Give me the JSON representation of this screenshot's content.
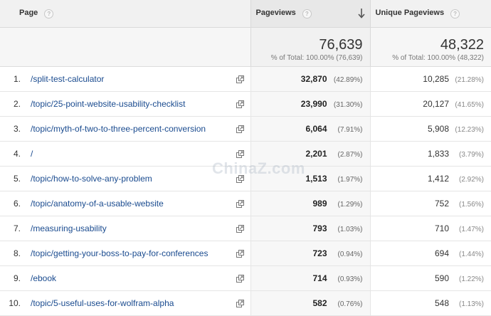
{
  "header": {
    "page_label": "Page",
    "pageviews_label": "Pageviews",
    "unique_pageviews_label": "Unique Pageviews",
    "help_glyph": "?"
  },
  "totals": {
    "pageviews": "76,639",
    "pageviews_sub": "% of Total: 100.00% (76,639)",
    "unique_pageviews": "48,322",
    "unique_pageviews_sub": "% of Total: 100.00% (48,322)"
  },
  "rows": [
    {
      "index": "1.",
      "page": "/split-test-calculator",
      "pv": "32,870",
      "pv_pct": "(42.89%)",
      "upv": "10,285",
      "upv_pct": "(21.28%)"
    },
    {
      "index": "2.",
      "page": "/topic/25-point-website-usability-checklist",
      "pv": "23,990",
      "pv_pct": "(31.30%)",
      "upv": "20,127",
      "upv_pct": "(41.65%)"
    },
    {
      "index": "3.",
      "page": "/topic/myth-of-two-to-three-percent-conversion",
      "pv": "6,064",
      "pv_pct": "(7.91%)",
      "upv": "5,908",
      "upv_pct": "(12.23%)"
    },
    {
      "index": "4.",
      "page": "/",
      "pv": "2,201",
      "pv_pct": "(2.87%)",
      "upv": "1,833",
      "upv_pct": "(3.79%)"
    },
    {
      "index": "5.",
      "page": "/topic/how-to-solve-any-problem",
      "pv": "1,513",
      "pv_pct": "(1.97%)",
      "upv": "1,412",
      "upv_pct": "(2.92%)"
    },
    {
      "index": "6.",
      "page": "/topic/anatomy-of-a-usable-website",
      "pv": "989",
      "pv_pct": "(1.29%)",
      "upv": "752",
      "upv_pct": "(1.56%)"
    },
    {
      "index": "7.",
      "page": "/measuring-usability",
      "pv": "793",
      "pv_pct": "(1.03%)",
      "upv": "710",
      "upv_pct": "(1.47%)"
    },
    {
      "index": "8.",
      "page": "/topic/getting-your-boss-to-pay-for-conferences",
      "pv": "723",
      "pv_pct": "(0.94%)",
      "upv": "694",
      "upv_pct": "(1.44%)"
    },
    {
      "index": "9.",
      "page": "/ebook",
      "pv": "714",
      "pv_pct": "(0.93%)",
      "upv": "590",
      "upv_pct": "(1.22%)"
    },
    {
      "index": "10.",
      "page": "/topic/5-useful-uses-for-wolfram-alpha",
      "pv": "582",
      "pv_pct": "(0.76%)",
      "upv": "548",
      "upv_pct": "(1.13%)"
    }
  ],
  "watermark": "ChinaZ.com",
  "colors": {
    "link": "#1a4b8f",
    "header_bg": "#f1f1f1",
    "sorted_column_bg": "#f7f7f7"
  },
  "icons": {
    "help": "help-icon",
    "sort": "sort-descending-arrow-icon",
    "row_link": "open-in-new-window-icon"
  }
}
